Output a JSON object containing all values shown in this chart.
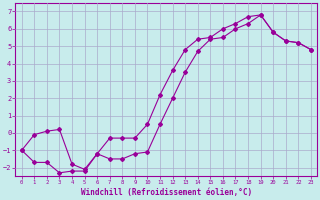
{
  "xlabel": "Windchill (Refroidissement éolien,°C)",
  "xlim": [
    -0.5,
    23.5
  ],
  "ylim": [
    -2.5,
    7.5
  ],
  "xticks": [
    0,
    1,
    2,
    3,
    4,
    5,
    6,
    7,
    8,
    9,
    10,
    11,
    12,
    13,
    14,
    15,
    16,
    17,
    18,
    19,
    20,
    21,
    22,
    23
  ],
  "yticks": [
    -2,
    -1,
    0,
    1,
    2,
    3,
    4,
    5,
    6,
    7
  ],
  "bg_color": "#c8ecec",
  "line_color": "#990099",
  "grid_color": "#aaaacc",
  "line1_x": [
    0,
    1,
    2,
    3,
    4,
    5,
    6,
    7,
    8,
    9,
    10,
    11,
    12,
    13,
    14,
    15,
    16,
    17,
    18,
    19,
    20,
    21,
    22,
    23
  ],
  "line1_y": [
    -1.0,
    -0.1,
    0.1,
    0.2,
    -1.8,
    -2.1,
    -1.2,
    -0.3,
    -0.3,
    -0.3,
    0.5,
    2.2,
    3.6,
    4.8,
    5.4,
    5.5,
    6.0,
    6.3,
    6.7,
    6.8,
    5.8,
    5.3,
    5.2,
    4.8
  ],
  "line2_x": [
    0,
    1,
    2,
    3,
    4,
    5,
    6,
    7,
    8,
    9,
    10,
    11,
    12,
    13,
    14,
    15,
    16,
    17,
    18,
    19,
    20,
    21,
    22,
    23
  ],
  "line2_y": [
    -1.0,
    -1.7,
    -1.7,
    -2.3,
    -2.2,
    -2.2,
    -1.2,
    -1.5,
    -1.5,
    -1.2,
    -1.1,
    0.5,
    2.0,
    3.5,
    4.7,
    5.4,
    5.5,
    6.0,
    6.3,
    6.8,
    5.8,
    5.3,
    5.2,
    4.8
  ]
}
